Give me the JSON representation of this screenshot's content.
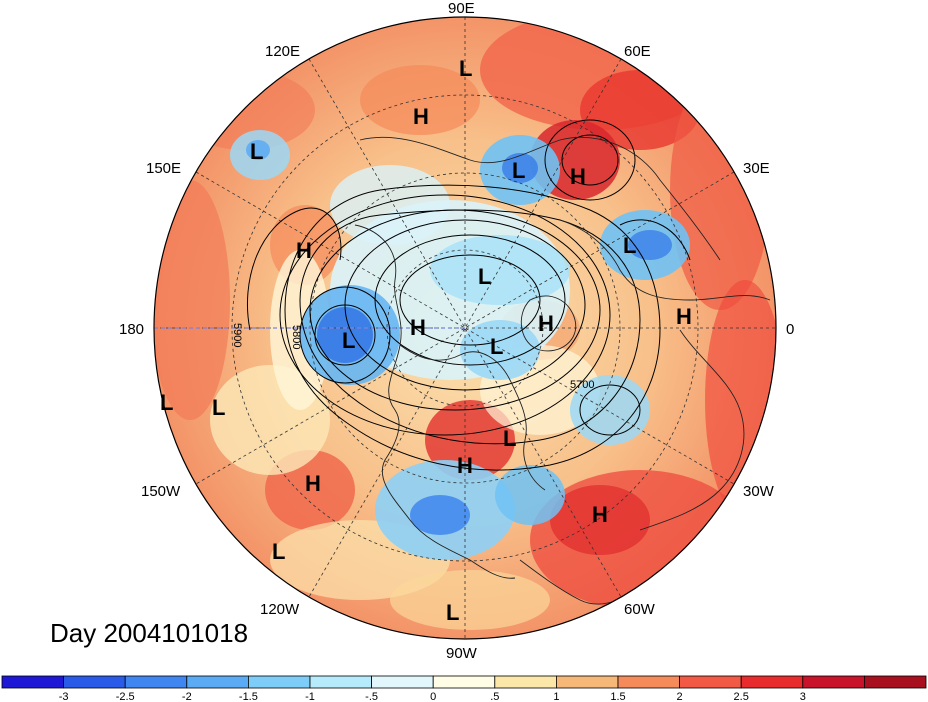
{
  "title": "Day 2004101018",
  "lon_labels": {
    "e90": "90E",
    "e120": "120E",
    "e60": "60E",
    "e150": "150E",
    "e30": "30E",
    "w180": "180",
    "w0": "0",
    "w150": "150W",
    "w30": "30W",
    "w120": "120W",
    "w60": "60W",
    "w90": "90W"
  },
  "contour_labels": {
    "c5900": "5900",
    "c5800": "5800",
    "c5700": "5700"
  },
  "pressure_centers": [
    {
      "type": "L",
      "region": "Siberia north"
    },
    {
      "type": "H",
      "region": "Siberia central"
    },
    {
      "type": "L",
      "region": "Kamchatka"
    },
    {
      "type": "L",
      "region": "Central Asia"
    },
    {
      "type": "H",
      "region": "Caspian region"
    },
    {
      "type": "H",
      "region": "North Pacific"
    },
    {
      "type": "L",
      "region": "Mediterranean"
    },
    {
      "type": "L",
      "region": "Arctic"
    },
    {
      "type": "H",
      "region": "Arctic Canada"
    },
    {
      "type": "H",
      "region": "Greenland Sea"
    },
    {
      "type": "H",
      "region": "West Africa"
    },
    {
      "type": "L",
      "region": "Alaska"
    },
    {
      "type": "L",
      "region": "Hudson Bay"
    },
    {
      "type": "L",
      "region": "Central Pacific"
    },
    {
      "type": "L",
      "region": "Central Pacific south"
    },
    {
      "type": "L",
      "region": "Labrador"
    },
    {
      "type": "H",
      "region": "Great Lakes"
    },
    {
      "type": "H",
      "region": "East Pacific"
    },
    {
      "type": "H",
      "region": "Central Atlantic"
    },
    {
      "type": "L",
      "region": "Southeast Pacific"
    },
    {
      "type": "L",
      "region": "Caribbean"
    }
  ],
  "colorbar": {
    "colors": [
      "#1f17d6",
      "#2a5be8",
      "#3f86f0",
      "#5aaaf4",
      "#7ecdf8",
      "#b5ebfb",
      "#e2f7fb",
      "#fffde6",
      "#fbe7a8",
      "#f5b878",
      "#f58a5a",
      "#f25a45",
      "#e82b2c",
      "#c8132a",
      "#a80f1f"
    ],
    "ticks": [
      "-3",
      "-2.5",
      "-2",
      "-1.5",
      "-1",
      "-.5",
      "0",
      ".5",
      "1",
      "1.5",
      "2",
      "2.5",
      "3"
    ]
  },
  "theme": {
    "warm_bg": "#f6a074",
    "cold": "#5aaaf4"
  }
}
